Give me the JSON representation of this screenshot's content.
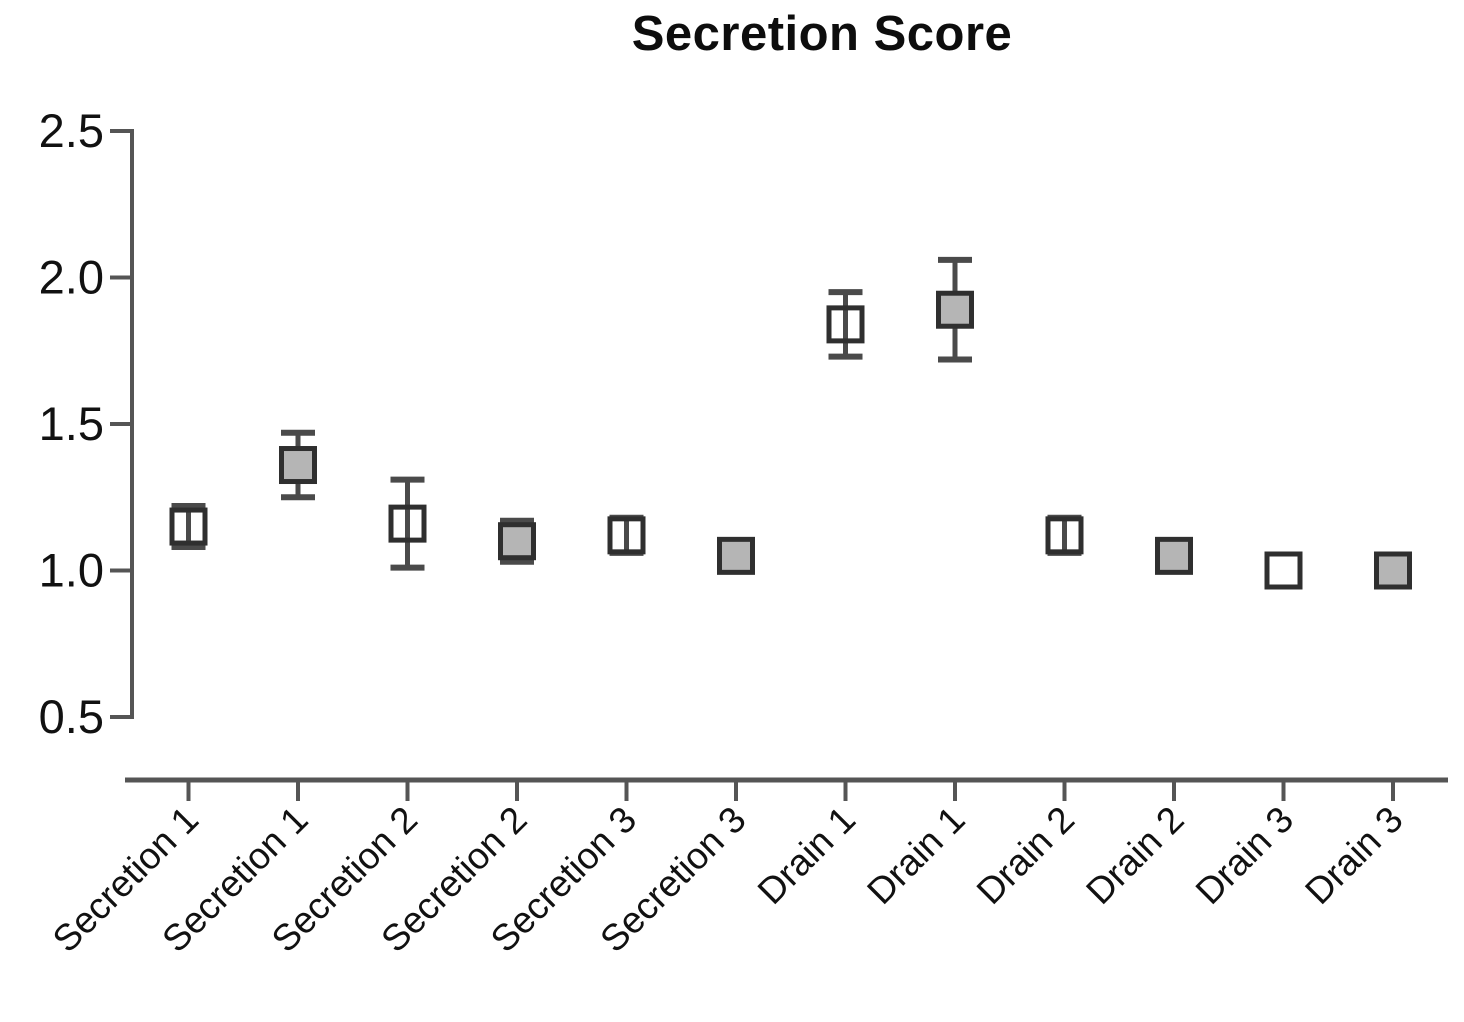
{
  "figure": {
    "background": "#ffffff"
  },
  "chart_data": {
    "type": "scatter",
    "title": "Secretion Score",
    "xlabel": "",
    "ylabel": "",
    "ylim": [
      0.5,
      2.5
    ],
    "yticks": [
      2.5,
      2.0,
      1.5,
      1.0,
      0.5
    ],
    "grid": false,
    "legend": "none",
    "categories": [
      "Secretion 1",
      "Secretion 1",
      "Secretion 2",
      "Secretion 2",
      "Secretion 3",
      "Secretion 3",
      "Drain 1",
      "Drain 1",
      "Drain 2",
      "Drain 2",
      "Drain 3",
      "Drain 3"
    ],
    "points": [
      {
        "label": "Secretion 1",
        "mean": 1.15,
        "err": 0.07,
        "marker": "open"
      },
      {
        "label": "Secretion 1",
        "mean": 1.36,
        "err": 0.11,
        "marker": "filled"
      },
      {
        "label": "Secretion 2",
        "mean": 1.16,
        "err": 0.15,
        "marker": "open"
      },
      {
        "label": "Secretion 2",
        "mean": 1.1,
        "err": 0.07,
        "marker": "filled"
      },
      {
        "label": "Secretion 3",
        "mean": 1.12,
        "err": 0.06,
        "marker": "open"
      },
      {
        "label": "Secretion 3",
        "mean": 1.05,
        "err": 0.0,
        "marker": "filled"
      },
      {
        "label": "Drain 1",
        "mean": 1.84,
        "err": 0.11,
        "marker": "open"
      },
      {
        "label": "Drain 1",
        "mean": 1.89,
        "err": 0.17,
        "marker": "filled"
      },
      {
        "label": "Drain 2",
        "mean": 1.12,
        "err": 0.06,
        "marker": "open"
      },
      {
        "label": "Drain 2",
        "mean": 1.05,
        "err": 0.0,
        "marker": "filled"
      },
      {
        "label": "Drain 3",
        "mean": 1.0,
        "err": 0.0,
        "marker": "open"
      },
      {
        "label": "Drain 3",
        "mean": 1.0,
        "err": 0.0,
        "marker": "filled"
      }
    ],
    "colors": {
      "marker_border": "#2f2f2f",
      "marker_fill_filled": "#b5b5b5",
      "marker_fill_open": "none",
      "error_bar": "#4a4a4a",
      "axis": "#555555",
      "text": "#111111"
    }
  }
}
